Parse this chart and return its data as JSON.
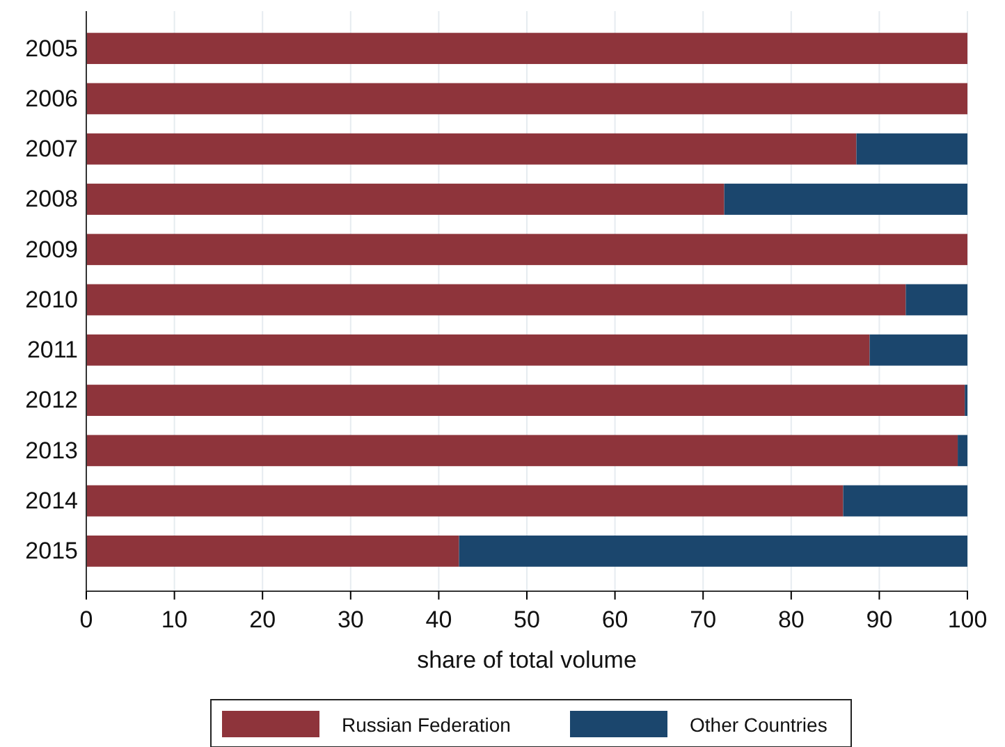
{
  "chart_data": {
    "type": "bar",
    "orientation": "horizontal",
    "stacked": true,
    "xlabel": "share of total volume",
    "categories": [
      "2005",
      "2006",
      "2007",
      "2008",
      "2009",
      "2010",
      "2011",
      "2012",
      "2013",
      "2014",
      "2015"
    ],
    "series": [
      {
        "name": "Russian Federation",
        "color": "#8e343b",
        "values": [
          100,
          100,
          87.4,
          72.4,
          100,
          93.0,
          88.9,
          99.7,
          98.9,
          85.9,
          42.3
        ]
      },
      {
        "name": "Other Countries",
        "color": "#1b466d",
        "values": [
          0,
          0,
          12.6,
          27.6,
          0,
          7.0,
          11.1,
          0.3,
          1.1,
          14.1,
          57.7
        ]
      }
    ],
    "xlim": [
      0,
      100
    ],
    "xticks": [
      0,
      10,
      20,
      30,
      40,
      50,
      60,
      70,
      80,
      90,
      100
    ],
    "grid": "x",
    "legend": "bottom"
  }
}
